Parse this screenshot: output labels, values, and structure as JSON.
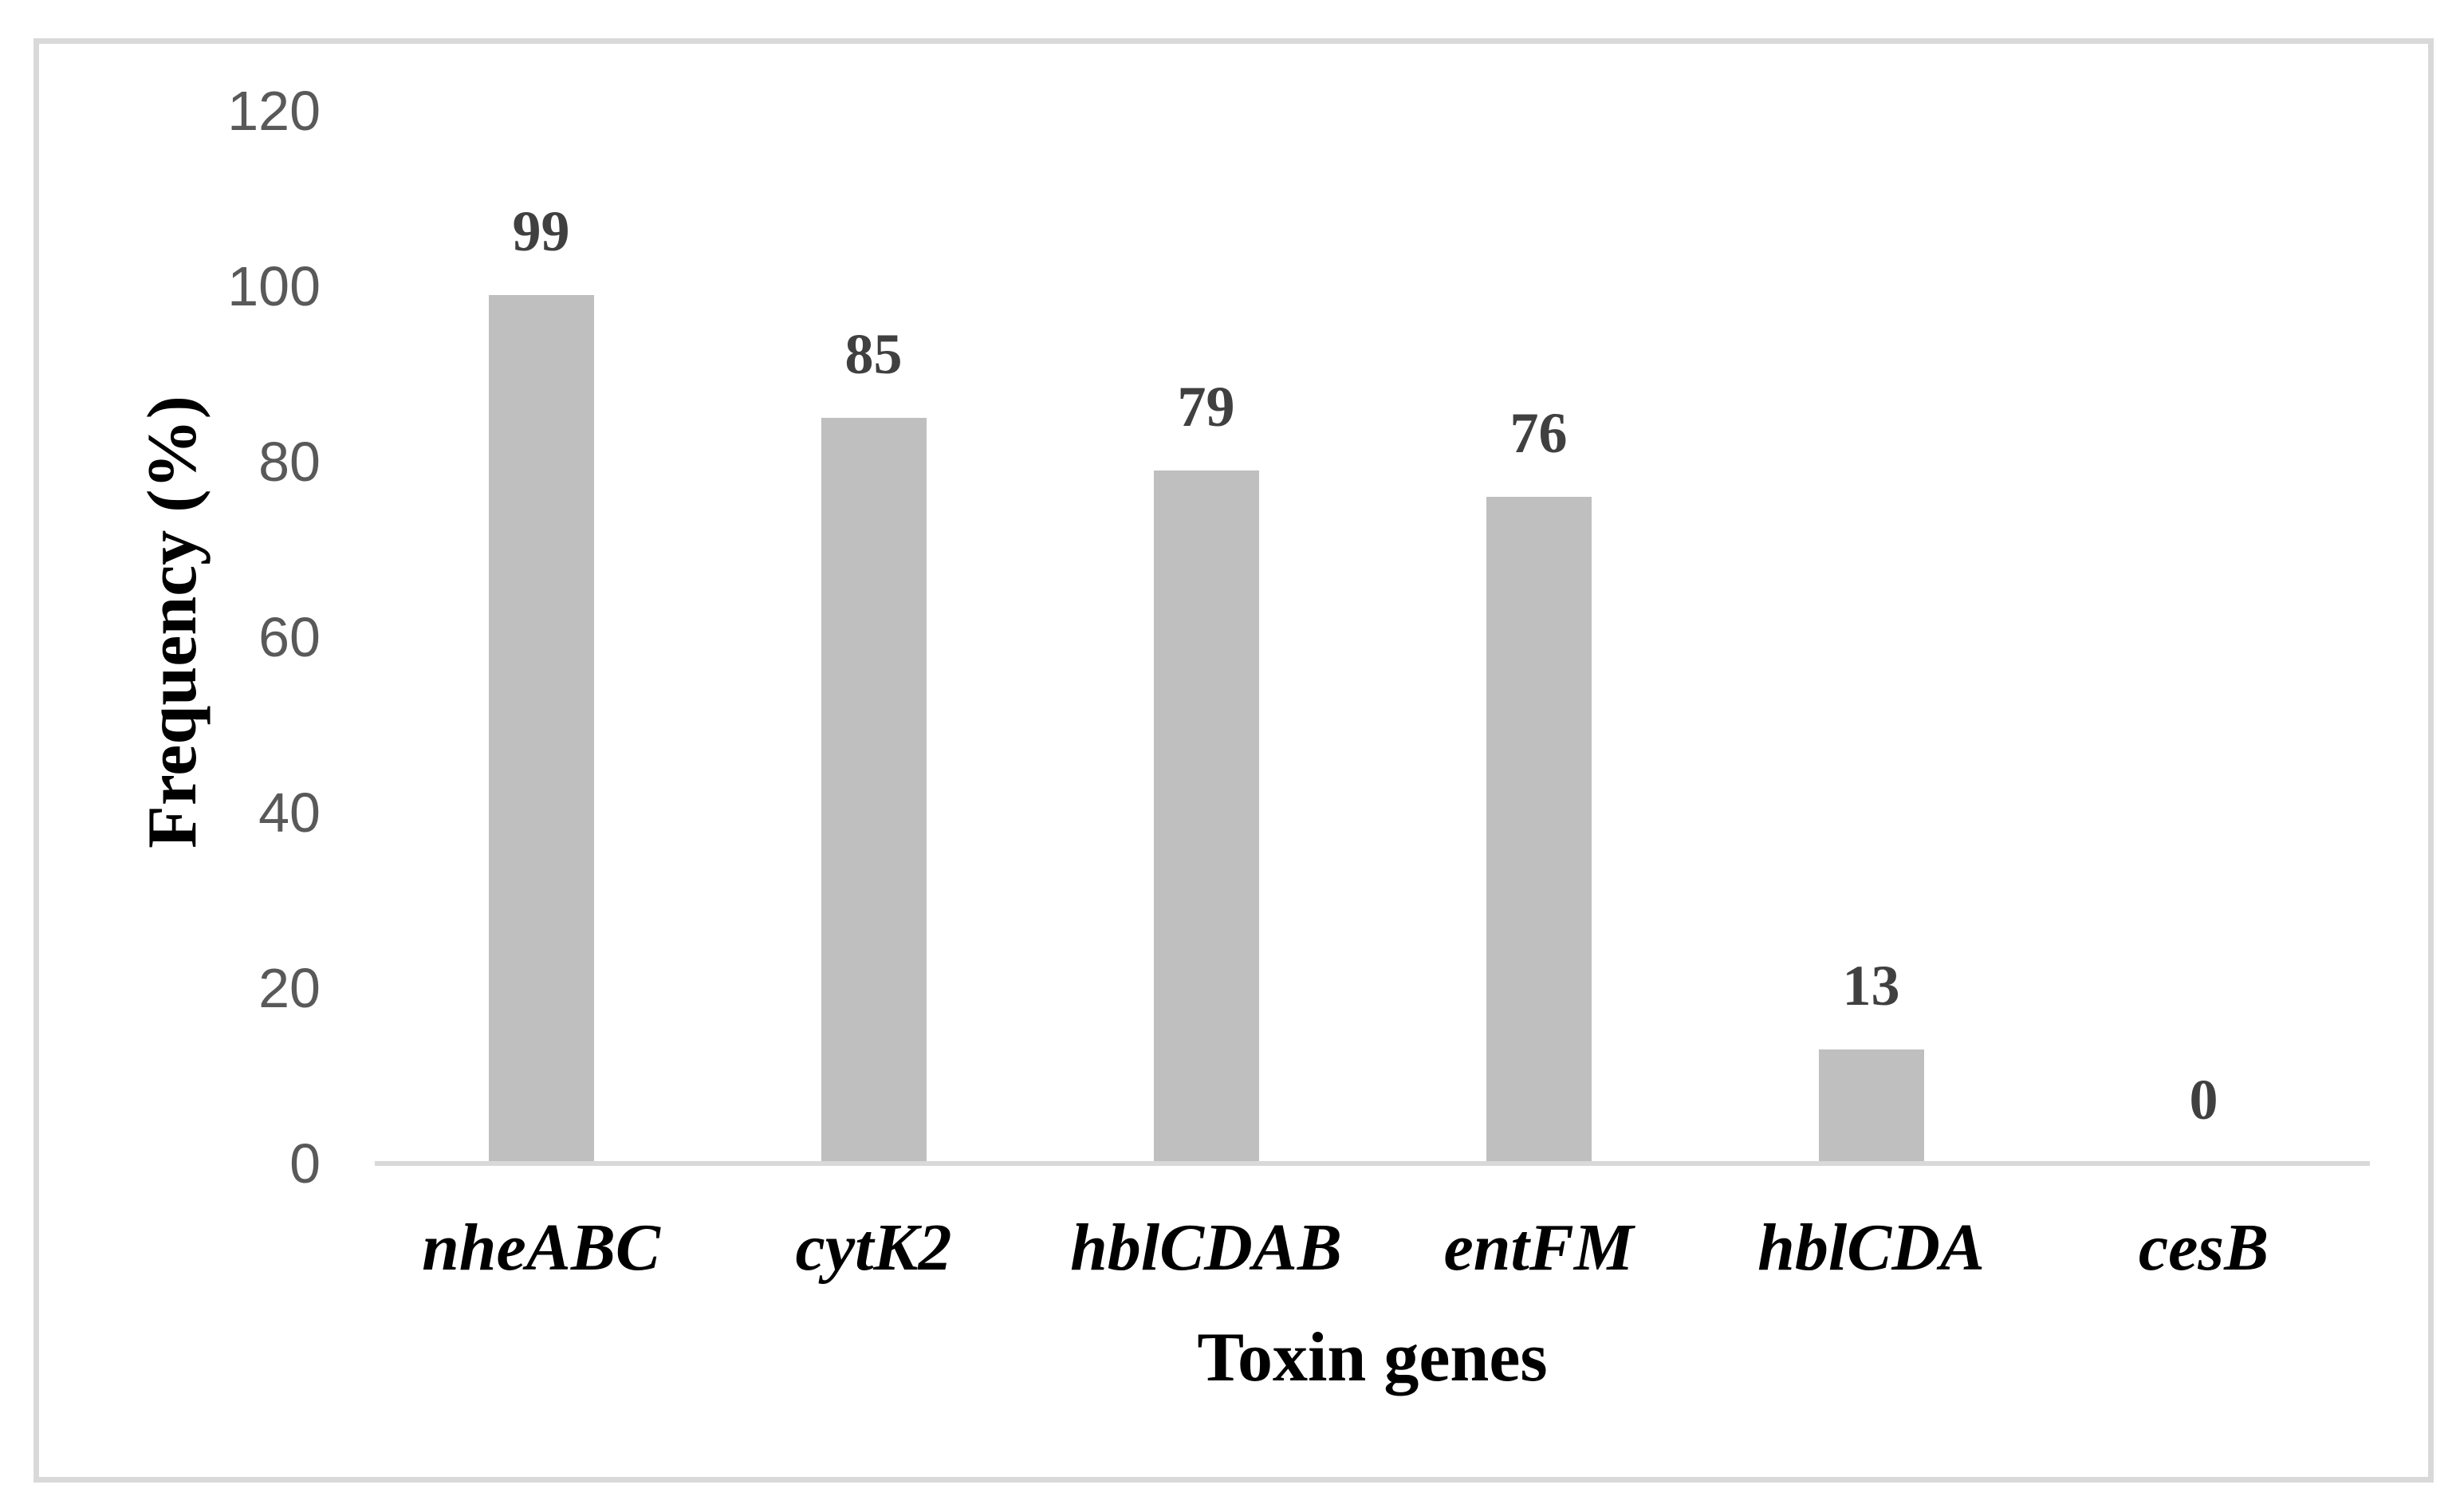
{
  "chart_data": {
    "type": "bar",
    "title": "",
    "categories": [
      "nheABC",
      "cytK2",
      "hblCDAB",
      "entFM",
      "hblCDA",
      "cesB"
    ],
    "values": [
      99,
      85,
      79,
      76,
      13,
      0
    ],
    "xlabel": "Toxin genes",
    "ylabel": "Frequency (%)",
    "ylim": [
      0,
      120
    ],
    "yticks": [
      0,
      20,
      40,
      60,
      80,
      100,
      120
    ],
    "grid": false,
    "legend": false,
    "bar_color": "#bfbfbf",
    "axis_line_color": "#d9d9d9",
    "frame_border_color": "#d9d9d9",
    "tick_label_color": "#595959",
    "value_label_color": "#404040",
    "category_label_color": "#000000"
  }
}
